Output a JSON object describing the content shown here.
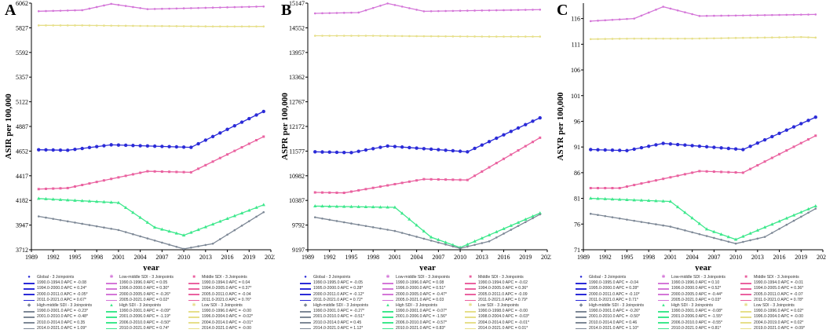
{
  "chart_data": [
    {
      "type": "line",
      "panel": "A",
      "ylabel": "ASIR per 100,000",
      "xlabel": "year",
      "yticks": [
        3712,
        3947,
        4182,
        4417,
        4652,
        4887,
        5122,
        5357,
        5592,
        5827,
        6062
      ],
      "ylim": [
        3712,
        6062
      ],
      "xticks": [
        1989,
        1992,
        1995,
        1998,
        2001,
        2004,
        2007,
        2010,
        2013,
        2016,
        2019,
        2022
      ],
      "xlim": [
        1989,
        2022
      ],
      "series": [
        {
          "name": "Global - 3 Joinpoints",
          "knots": [
            [
              1990,
              4665
            ],
            [
              1994,
              4660
            ],
            [
              2000,
              4712
            ],
            [
              2011,
              4688
            ],
            [
              2021,
              5030
            ]
          ],
          "segments": [
            "1990.0-1994.0 APC  =  -0.08",
            "1994.0-2000.0 APC  =  0.24*",
            "2000.0-2011.0 APC  =  -0.05*",
            "2011.0-2021.0 APC  =  0.67*"
          ]
        },
        {
          "name": "High SDI - 3 Joinpoints",
          "knots": [
            [
              1990,
              4200
            ],
            [
              2001,
              4160
            ],
            [
              2006,
              3925
            ],
            [
              2010,
              3850
            ],
            [
              2021,
              4140
            ]
          ],
          "segments": [
            "1990.0-2001.0 APC  =  -0.09*",
            "2001.0-2006.0 APC  =  -1.19*",
            "2006.0-2010.0 APC  =  -0.50*",
            "2010.0-2021.0 APC  =  0.74*"
          ]
        },
        {
          "name": "High-middle SDI - 3 Joinpoints",
          "knots": [
            [
              1990,
              4030
            ],
            [
              2001,
              3900
            ],
            [
              2010,
              3720
            ],
            [
              2014,
              3770
            ],
            [
              2021,
              4070
            ]
          ],
          "segments": [
            "1990.0-2001.0 APC  =  -0.23*",
            "2001.0-2010.0 APC  =  -0.48*",
            "2010.0-2014.0 APC  =  0.35",
            "2014.0-2021.0 APC  =  1.09*"
          ]
        },
        {
          "name": "Middle SDI - 3 Joinpoints",
          "knots": [
            [
              1990,
              4290
            ],
            [
              1994,
              4300
            ],
            [
              2005,
              4460
            ],
            [
              2011,
              4450
            ],
            [
              2021,
              4790
            ]
          ],
          "segments": [
            "1990.0-1994.0 APC  =  0.04",
            "1994.0-2005.0 APC  =  0.37*",
            "2005.0-2011.0 APC  =  -0.04",
            "2011.0-2021.0 APC  =  0.76*"
          ]
        },
        {
          "name": "Low-middle SDI - 3 Joinpoints",
          "knots": [
            [
              1990,
              5985
            ],
            [
              1996,
              5995
            ],
            [
              2000,
              6055
            ],
            [
              2005,
              6005
            ],
            [
              2021,
              6030
            ]
          ],
          "segments": [
            "1990.0-1996.0 APC  =  0.05",
            "1996.0-2000.0 APC  =  0.30*",
            "2000.0-2005.0 APC  =  -0.26*",
            "2005.0-2021.0 APC  =  0.02*"
          ]
        },
        {
          "name": "Low SDI - 3 Joinpoints",
          "knots": [
            [
              1990,
              5850
            ],
            [
              1996,
              5850
            ],
            [
              2004,
              5845
            ],
            [
              2014,
              5840
            ],
            [
              2021,
              5840
            ]
          ],
          "segments": [
            "1990.0-1996.0 APC  =  -0.00",
            "1996.0-2004.0 APC  =  -0.02*",
            "2004.0-2014.0 APC  =  -0.01*",
            "2014.0-2021.0 APC  =  -0.00"
          ]
        }
      ]
    },
    {
      "type": "line",
      "panel": "B",
      "ylabel": "ASPR per 100,000",
      "xlabel": "year",
      "yticks": [
        9197,
        9792,
        10387,
        10982,
        11577,
        12172,
        12767,
        13362,
        13957,
        14552,
        15147
      ],
      "ylim": [
        9197,
        15147
      ],
      "xticks": [
        1989,
        1992,
        1995,
        1998,
        2001,
        2004,
        2007,
        2010,
        2013,
        2016,
        2019,
        2022
      ],
      "xlim": [
        1989,
        2022
      ],
      "series": [
        {
          "name": "Global - 3 Joinpoints",
          "knots": [
            [
              1990,
              11560
            ],
            [
              1995,
              11540
            ],
            [
              2000,
              11700
            ],
            [
              2011,
              11560
            ],
            [
              2021,
              12380
            ]
          ],
          "segments": [
            "1990.0-1995.0 APC  =  -0.05",
            "1995.0-2000.0 APC  =  0.28*",
            "2000.0-2011.0 APC  =  -0.12*",
            "2011.0-2021.0 APC  =  0.72*"
          ]
        },
        {
          "name": "High SDI - 3 Joinpoints",
          "knots": [
            [
              1990,
              10250
            ],
            [
              2001,
              10220
            ],
            [
              2006,
              9500
            ],
            [
              2010,
              9250
            ],
            [
              2021,
              10080
            ]
          ],
          "segments": [
            "1990.0-2001.0 APC  =  -0.07*",
            "2001.0-2006.0 APC  =  -1.56*",
            "2006.0-2010.0 APC  =  -0.57*",
            "2010.0-2021.0 APC  =  0.83*"
          ]
        },
        {
          "name": "High-middle SDI - 3 Joinpoints",
          "knots": [
            [
              1990,
              9980
            ],
            [
              2001,
              9650
            ],
            [
              2010,
              9230
            ],
            [
              2014,
              9400
            ],
            [
              2021,
              10050
            ]
          ],
          "segments": [
            "1990.0-2001.0 APC  =  -0.27*",
            "2001.0-2010.0 APC  =  -0.51*",
            "2010.0-2014.0 APC  =  0.45",
            "2014.0-2021.0 APC  =  1.12*"
          ]
        },
        {
          "name": "Middle SDI - 3 Joinpoints",
          "knots": [
            [
              1990,
              10580
            ],
            [
              1994,
              10570
            ],
            [
              2005,
              10900
            ],
            [
              2011,
              10880
            ],
            [
              2021,
              11900
            ]
          ],
          "segments": [
            "1990.0-1994.0 APC  =  -0.02",
            "1994.0-2005.0 APC  =  0.36*",
            "2005.0-2011.0 APC  =  -0.09",
            "2011.0-2021.0 APC  =  0.79*"
          ]
        },
        {
          "name": "Low-middle SDI - 3 Joinpoints",
          "knots": [
            [
              1990,
              14900
            ],
            [
              1996,
              14920
            ],
            [
              2000,
              15140
            ],
            [
              2005,
              14950
            ],
            [
              2021,
              14990
            ]
          ],
          "segments": [
            "1990.0-1996.0 APC  =  0.08",
            "1996.0-2000.0 APC  =  0.51*",
            "2000.0-2005.0 APC  =  -0.47*",
            "2005.0-2021.0 APC  =  0.03"
          ]
        },
        {
          "name": "Low SDI - 3 Joinpoints",
          "knots": [
            [
              1990,
              14360
            ],
            [
              1998,
              14360
            ],
            [
              2004,
              14350
            ],
            [
              2014,
              14340
            ],
            [
              2021,
              14340
            ]
          ],
          "segments": [
            "1990.0-1998.0 APC  =  -0.00",
            "1998.0-2004.0 APC  =  -0.03*",
            "2004.0-2014.0 APC  =  -0.01*",
            "2014.0-2021.0 APC  =  0.01*"
          ]
        }
      ]
    },
    {
      "type": "line",
      "panel": "C",
      "ylabel": "ASYR per 100,000",
      "xlabel": "year",
      "yticks": [
        71,
        76,
        81,
        86,
        91,
        96,
        101,
        106,
        111,
        116
      ],
      "ylim": [
        71,
        119
      ],
      "xticks": [
        1989,
        1992,
        1995,
        1998,
        2001,
        2004,
        2007,
        2010,
        2013,
        2016,
        2019,
        2022
      ],
      "xlim": [
        1989,
        2022
      ],
      "series": [
        {
          "name": "Global - 3 Joinpoints",
          "knots": [
            [
              1990,
              90.5
            ],
            [
              1995,
              90.3
            ],
            [
              2000,
              91.7
            ],
            [
              2011,
              90.5
            ],
            [
              2021,
              96.8
            ]
          ],
          "segments": [
            "1990.0-1995.0 APC  =  -0.04",
            "1995.0-2000.0 APC  =  0.28*",
            "2000.0-2011.0 APC  =  -0.10*",
            "2011.0-2021.0 APC  =  0.71*"
          ]
        },
        {
          "name": "High SDI - 3 Joinpoints",
          "knots": [
            [
              1990,
              81
            ],
            [
              2001,
              80.4
            ],
            [
              2006,
              75
            ],
            [
              2010,
              73
            ],
            [
              2021,
              79.5
            ]
          ],
          "segments": [
            "1990.0-2001.0 APC  =  -0.08*",
            "2001.0-2006.0 APC  =  -1.55*",
            "2006.0-2010.0 APC  =  -0.55*",
            "2010.0-2021.0 APC  =  0.81*"
          ]
        },
        {
          "name": "High-middle SDI - 3 Joinpoints",
          "knots": [
            [
              1990,
              78
            ],
            [
              2001,
              75.5
            ],
            [
              2010,
              72.2
            ],
            [
              2014,
              73.5
            ],
            [
              2021,
              79
            ]
          ],
          "segments": [
            "1990.0-2001.0 APC  =  -0.26*",
            "2001.0-2010.0 APC  =  -0.50*",
            "2010.0-2014.0 APC  =  0.46",
            "2014.0-2021.0 APC  =  1.10*"
          ]
        },
        {
          "name": "Middle SDI - 3 Joinpoints",
          "knots": [
            [
              1990,
              83
            ],
            [
              1994,
              83
            ],
            [
              2005,
              86.3
            ],
            [
              2011,
              86
            ],
            [
              2021,
              93.2
            ]
          ],
          "segments": [
            "1990.0-1994.0 APC  =  -0.01",
            "1994.0-2005.0 APC  =  0.36*",
            "2005.0-2011.0 APC  =  -0.07",
            "2011.0-2021.0 APC  =  0.78*"
          ]
        },
        {
          "name": "Low-middle SDI - 3 Joinpoints",
          "knots": [
            [
              1990,
              115.5
            ],
            [
              1996,
              116
            ],
            [
              2000,
              118.3
            ],
            [
              2005,
              116.5
            ],
            [
              2021,
              116.8
            ]
          ],
          "segments": [
            "1990.0-1996.0 APC  =  0.10",
            "1996.0-2000.0 APC  =  0.52*",
            "2000.0-2005.0 APC  =  -0.44*",
            "2005.0-2021.0 APC  =  0.03*"
          ]
        },
        {
          "name": "Low SDI - 3 Joinpoints",
          "knots": [
            [
              1990,
              112
            ],
            [
              1996,
              112.1
            ],
            [
              2004,
              112.1
            ],
            [
              2019,
              112.4
            ],
            [
              2021,
              112.3
            ]
          ],
          "segments": [
            "1990.0-1996.0 APC  =  0.02*",
            "1996.0-2004.0 APC  =  -0.00",
            "2004.0-2019.0 APC  =  0.02*",
            "2019.0-2021.0 APC  =  -0.09*"
          ]
        }
      ]
    }
  ],
  "colors": {
    "Global": "#2b2bd8",
    "High SDI": "#3de88c",
    "High-middle SDI": "#7d8896",
    "Middle SDI": "#ea62a0",
    "Low-middle SDI": "#d476d8",
    "Low SDI": "#e6df8a"
  }
}
